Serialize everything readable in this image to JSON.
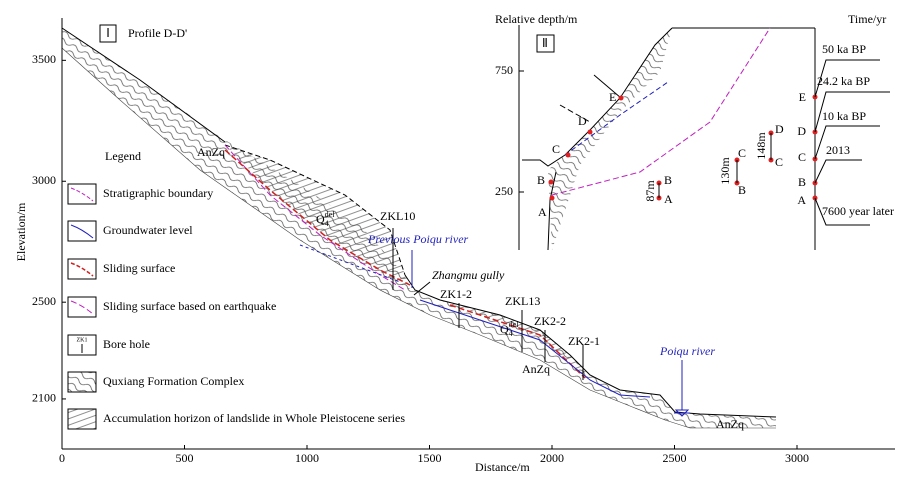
{
  "main": {
    "panel_label": "Ⅰ",
    "title": "Profile D-D'",
    "x_label": "Distance/m",
    "y_label": "Elevation/m",
    "xlim": [
      0,
      3400
    ],
    "ylim": [
      1893,
      3675
    ],
    "xticks": [
      0,
      500,
      1000,
      1500,
      2000,
      2500,
      3000
    ],
    "yticks": [
      2100,
      2500,
      3000,
      3500
    ]
  },
  "legend": {
    "title": "Legend",
    "bore_icon": "ZK1",
    "items": [
      "Stratigraphic boundary",
      "Groundwater level",
      "Sliding surface",
      "Sliding surface based on earthquake",
      "Bore hole",
      "Quxiang Formation Complex",
      "Accumulation horizon of landslide in Whole  Pleistocene series"
    ]
  },
  "labels": {
    "anzq": [
      "AnZq",
      "AnZq",
      "AnZq"
    ],
    "q4del": [
      {
        "base": "Q",
        "sub": "4",
        "sup": "del"
      },
      {
        "base": "Q",
        "sub": "4",
        "sup": "del"
      }
    ],
    "boreholes": [
      "ZKL10",
      "ZK1-2",
      "ZKL13",
      "ZK2-2",
      "ZK2-1"
    ],
    "previous_river": "Previous Poiqu river",
    "gully": "Zhangmu gully",
    "river": "Poiqu river"
  },
  "inset": {
    "panel_label": "Ⅱ",
    "y_label": "Relative depth/m",
    "yticks": [
      750,
      250
    ],
    "time_label": "Time/yr",
    "profile_points": [
      "E",
      "D",
      "C",
      "B",
      "A"
    ],
    "columns": [
      {
        "height": "87m",
        "top": "B",
        "bottom": "A"
      },
      {
        "height": "130m",
        "top": "C",
        "bottom": "B"
      },
      {
        "height": "148m",
        "top": "D",
        "bottom": "C"
      }
    ],
    "time_points": [
      "E",
      "D",
      "C",
      "B",
      "A"
    ],
    "times": [
      "50 ka BP",
      "24.2 ka BP",
      "10 ka BP",
      "2013",
      "7600 year later"
    ]
  }
}
